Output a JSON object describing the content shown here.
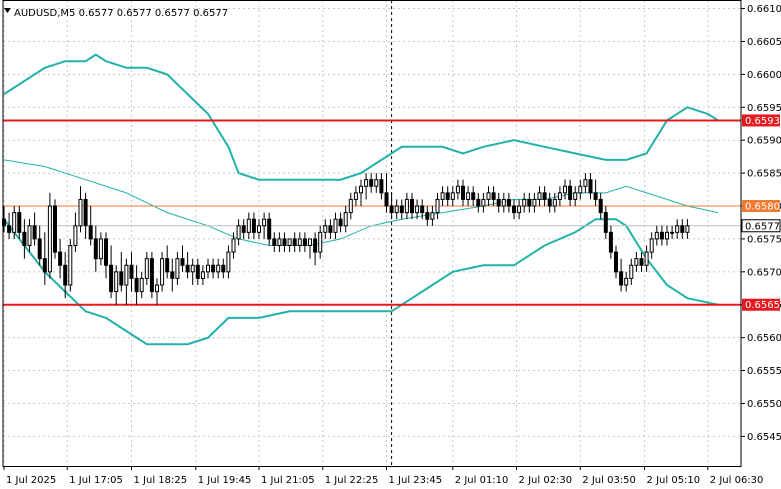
{
  "chart_data": {
    "type": "candlestick",
    "symbol_header": "AUDUSD,M5  0.6577 0.6577 0.6577 0.6577",
    "y_range": [
      0.65405,
      0.66113
    ],
    "y_ticks": [
      "0.6610",
      "0.6605",
      "0.6600",
      "0.6595",
      "0.6590",
      "0.6585",
      "0.6580",
      "0.6575",
      "0.6570",
      "0.6565",
      "0.6560",
      "0.6555",
      "0.6550",
      "0.6545"
    ],
    "x_ticks": [
      "1 Jul 2025",
      "1 Jul 17:05",
      "1 Jul 18:25",
      "1 Jul 19:45",
      "1 Jul 21:05",
      "1 Jul 22:25",
      "1 Jul 23:45",
      "2 Jul 01:10",
      "2 Jul 02:30",
      "2 Jul 03:50",
      "2 Jul 05:10",
      "2 Jul 06:30"
    ],
    "horizontal_lines": [
      {
        "price": 0.6593,
        "label": "0.6593",
        "color": "#e8191e",
        "width": 2
      },
      {
        "price": 0.658,
        "label": "0.6580",
        "color": "#f07a32",
        "width": 1
      },
      {
        "price": 0.6565,
        "label": "0.6565",
        "color": "#e8191e",
        "width": 2
      }
    ],
    "current_price": {
      "price": 0.6577,
      "label": "0.6577"
    },
    "session_divider_index": 76,
    "indicators": {
      "upper_band": [
        [
          0,
          0.6597
        ],
        [
          4,
          0.6599
        ],
        [
          8,
          0.6601
        ],
        [
          12,
          0.6602
        ],
        [
          16,
          0.6602
        ],
        [
          18,
          0.6603
        ],
        [
          20,
          0.6602
        ],
        [
          24,
          0.6601
        ],
        [
          28,
          0.6601
        ],
        [
          32,
          0.66
        ],
        [
          36,
          0.6597
        ],
        [
          40,
          0.6594
        ],
        [
          44,
          0.6589
        ],
        [
          46,
          0.6585
        ],
        [
          50,
          0.6584
        ],
        [
          56,
          0.6584
        ],
        [
          62,
          0.6584
        ],
        [
          66,
          0.6584
        ],
        [
          70,
          0.6585
        ],
        [
          74,
          0.6587
        ],
        [
          78,
          0.6589
        ],
        [
          86,
          0.6589
        ],
        [
          90,
          0.6588
        ],
        [
          94,
          0.6589
        ],
        [
          100,
          0.659
        ],
        [
          106,
          0.6589
        ],
        [
          112,
          0.6588
        ],
        [
          118,
          0.6587
        ],
        [
          122,
          0.6587
        ],
        [
          126,
          0.6588
        ],
        [
          130,
          0.6593
        ],
        [
          134,
          0.6595
        ],
        [
          138,
          0.6594
        ],
        [
          140,
          0.6593
        ]
      ],
      "lower_band": [
        [
          0,
          0.6578
        ],
        [
          4,
          0.6574
        ],
        [
          8,
          0.657
        ],
        [
          12,
          0.6567
        ],
        [
          16,
          0.6564
        ],
        [
          20,
          0.6563
        ],
        [
          24,
          0.6561
        ],
        [
          28,
          0.6559
        ],
        [
          32,
          0.6559
        ],
        [
          36,
          0.6559
        ],
        [
          40,
          0.656
        ],
        [
          44,
          0.6563
        ],
        [
          50,
          0.6563
        ],
        [
          56,
          0.6564
        ],
        [
          62,
          0.6564
        ],
        [
          66,
          0.6564
        ],
        [
          70,
          0.6564
        ],
        [
          76,
          0.6564
        ],
        [
          80,
          0.6566
        ],
        [
          84,
          0.6568
        ],
        [
          88,
          0.657
        ],
        [
          94,
          0.6571
        ],
        [
          100,
          0.6571
        ],
        [
          106,
          0.6574
        ],
        [
          112,
          0.6576
        ],
        [
          116,
          0.6578
        ],
        [
          120,
          0.6578
        ],
        [
          122,
          0.6577
        ],
        [
          126,
          0.6572
        ],
        [
          130,
          0.6568
        ],
        [
          134,
          0.6566
        ],
        [
          140,
          0.6565
        ]
      ],
      "moving_average": [
        [
          0,
          0.6587
        ],
        [
          8,
          0.6586
        ],
        [
          16,
          0.6584
        ],
        [
          24,
          0.6582
        ],
        [
          32,
          0.6579
        ],
        [
          40,
          0.6577
        ],
        [
          46,
          0.6575
        ],
        [
          52,
          0.6574
        ],
        [
          60,
          0.6574
        ],
        [
          66,
          0.6575
        ],
        [
          72,
          0.6577
        ],
        [
          78,
          0.6578
        ],
        [
          86,
          0.6579
        ],
        [
          94,
          0.658
        ],
        [
          100,
          0.6581
        ],
        [
          106,
          0.6581
        ],
        [
          112,
          0.6582
        ],
        [
          118,
          0.6582
        ],
        [
          122,
          0.6583
        ],
        [
          126,
          0.6582
        ],
        [
          130,
          0.6581
        ],
        [
          134,
          0.658
        ],
        [
          140,
          0.6579
        ]
      ]
    },
    "candles": [
      [
        0.6578,
        0.658,
        0.6576,
        0.6577
      ],
      [
        0.6577,
        0.6579,
        0.6575,
        0.6576
      ],
      [
        0.6576,
        0.658,
        0.6575,
        0.6579
      ],
      [
        0.6579,
        0.658,
        0.6575,
        0.6576
      ],
      [
        0.6576,
        0.6578,
        0.6572,
        0.6574
      ],
      [
        0.6574,
        0.6578,
        0.6573,
        0.6577
      ],
      [
        0.6577,
        0.6579,
        0.6574,
        0.6575
      ],
      [
        0.6575,
        0.6577,
        0.6571,
        0.6572
      ],
      [
        0.6572,
        0.6576,
        0.6568,
        0.657
      ],
      [
        0.657,
        0.6582,
        0.6569,
        0.658
      ],
      [
        0.658,
        0.6581,
        0.6572,
        0.6573
      ],
      [
        0.6573,
        0.6575,
        0.6569,
        0.6571
      ],
      [
        0.6571,
        0.6573,
        0.6566,
        0.6568
      ],
      [
        0.6568,
        0.6575,
        0.6567,
        0.6574
      ],
      [
        0.6574,
        0.6579,
        0.6573,
        0.6577
      ],
      [
        0.6577,
        0.6583,
        0.6576,
        0.6581
      ],
      [
        0.6581,
        0.6582,
        0.6575,
        0.6577
      ],
      [
        0.6577,
        0.658,
        0.6574,
        0.6575
      ],
      [
        0.6575,
        0.6577,
        0.657,
        0.6572
      ],
      [
        0.6572,
        0.6576,
        0.6571,
        0.6575
      ],
      [
        0.6575,
        0.6576,
        0.6569,
        0.6571
      ],
      [
        0.6571,
        0.6574,
        0.6566,
        0.6567
      ],
      [
        0.6567,
        0.6571,
        0.6565,
        0.657
      ],
      [
        0.657,
        0.6573,
        0.6567,
        0.6568
      ],
      [
        0.6568,
        0.6572,
        0.6565,
        0.6571
      ],
      [
        0.6571,
        0.6573,
        0.6567,
        0.6569
      ],
      [
        0.6569,
        0.6571,
        0.6565,
        0.6567
      ],
      [
        0.6567,
        0.657,
        0.6566,
        0.6569
      ],
      [
        0.6569,
        0.6573,
        0.6568,
        0.6572
      ],
      [
        0.6572,
        0.6573,
        0.6566,
        0.6567
      ],
      [
        0.6567,
        0.6569,
        0.6565,
        0.6568
      ],
      [
        0.6568,
        0.6573,
        0.6567,
        0.6572
      ],
      [
        0.6572,
        0.6574,
        0.6569,
        0.657
      ],
      [
        0.657,
        0.6572,
        0.6567,
        0.6569
      ],
      [
        0.6569,
        0.6573,
        0.6568,
        0.6572
      ],
      [
        0.6572,
        0.6574,
        0.657,
        0.6571
      ],
      [
        0.6571,
        0.6573,
        0.6569,
        0.657
      ],
      [
        0.657,
        0.6572,
        0.6568,
        0.6571
      ],
      [
        0.6571,
        0.6572,
        0.6568,
        0.6569
      ],
      [
        0.6569,
        0.6571,
        0.6568,
        0.657
      ],
      [
        0.657,
        0.6572,
        0.6569,
        0.6571
      ],
      [
        0.6571,
        0.6572,
        0.6569,
        0.657
      ],
      [
        0.657,
        0.6572,
        0.6569,
        0.6571
      ],
      [
        0.6571,
        0.6572,
        0.6569,
        0.657
      ],
      [
        0.657,
        0.6574,
        0.6569,
        0.6573
      ],
      [
        0.6573,
        0.6576,
        0.6572,
        0.6575
      ],
      [
        0.6575,
        0.6578,
        0.6574,
        0.6577
      ],
      [
        0.6577,
        0.6578,
        0.6575,
        0.6576
      ],
      [
        0.6576,
        0.6579,
        0.6575,
        0.6578
      ],
      [
        0.6578,
        0.6579,
        0.6575,
        0.6576
      ],
      [
        0.6576,
        0.6578,
        0.6575,
        0.6577
      ],
      [
        0.6577,
        0.6579,
        0.6575,
        0.6578
      ],
      [
        0.6578,
        0.6579,
        0.6574,
        0.6575
      ],
      [
        0.6575,
        0.6576,
        0.6573,
        0.6574
      ],
      [
        0.6574,
        0.6576,
        0.6573,
        0.6575
      ],
      [
        0.6575,
        0.6576,
        0.6573,
        0.6574
      ],
      [
        0.6574,
        0.6575,
        0.6573,
        0.6575
      ],
      [
        0.6575,
        0.6576,
        0.6573,
        0.6574
      ],
      [
        0.6574,
        0.6576,
        0.6573,
        0.6575
      ],
      [
        0.6575,
        0.6576,
        0.6573,
        0.6574
      ],
      [
        0.6574,
        0.6575,
        0.6572,
        0.6575
      ],
      [
        0.6575,
        0.6576,
        0.6571,
        0.6573
      ],
      [
        0.6573,
        0.6577,
        0.6572,
        0.6576
      ],
      [
        0.6576,
        0.6578,
        0.6575,
        0.6577
      ],
      [
        0.6577,
        0.6578,
        0.6575,
        0.6576
      ],
      [
        0.6576,
        0.6579,
        0.6575,
        0.6578
      ],
      [
        0.6578,
        0.6579,
        0.6576,
        0.6577
      ],
      [
        0.6577,
        0.658,
        0.6576,
        0.6579
      ],
      [
        0.6579,
        0.6582,
        0.6578,
        0.6581
      ],
      [
        0.6581,
        0.6583,
        0.658,
        0.6582
      ],
      [
        0.6582,
        0.6584,
        0.658,
        0.6583
      ],
      [
        0.6583,
        0.6585,
        0.6581,
        0.6584
      ],
      [
        0.6584,
        0.6585,
        0.6582,
        0.6583
      ],
      [
        0.6583,
        0.6585,
        0.6582,
        0.6584
      ],
      [
        0.6584,
        0.6585,
        0.6581,
        0.6582
      ],
      [
        0.6582,
        0.6585,
        0.6579,
        0.658
      ],
      [
        0.658,
        0.6582,
        0.6578,
        0.6579
      ],
      [
        0.6579,
        0.6581,
        0.6578,
        0.658
      ],
      [
        0.658,
        0.6581,
        0.6578,
        0.6579
      ],
      [
        0.6579,
        0.6582,
        0.6578,
        0.6581
      ],
      [
        0.6581,
        0.6582,
        0.6578,
        0.6579
      ],
      [
        0.6579,
        0.6581,
        0.6578,
        0.658
      ],
      [
        0.658,
        0.6581,
        0.6578,
        0.6579
      ],
      [
        0.6579,
        0.658,
        0.6577,
        0.6578
      ],
      [
        0.6578,
        0.658,
        0.6577,
        0.6579
      ],
      [
        0.6579,
        0.6582,
        0.6578,
        0.6581
      ],
      [
        0.6581,
        0.6583,
        0.658,
        0.6582
      ],
      [
        0.6582,
        0.6583,
        0.658,
        0.6581
      ],
      [
        0.6581,
        0.6583,
        0.658,
        0.6582
      ],
      [
        0.6582,
        0.6584,
        0.6581,
        0.6583
      ],
      [
        0.6583,
        0.6584,
        0.658,
        0.6581
      ],
      [
        0.6581,
        0.6583,
        0.658,
        0.6582
      ],
      [
        0.6582,
        0.6583,
        0.658,
        0.6581
      ],
      [
        0.6581,
        0.6582,
        0.6579,
        0.658
      ],
      [
        0.658,
        0.6582,
        0.6579,
        0.6581
      ],
      [
        0.6581,
        0.6583,
        0.658,
        0.6582
      ],
      [
        0.6582,
        0.6583,
        0.658,
        0.6581
      ],
      [
        0.6581,
        0.6582,
        0.6579,
        0.658
      ],
      [
        0.658,
        0.6582,
        0.6579,
        0.6581
      ],
      [
        0.6581,
        0.6582,
        0.6579,
        0.658
      ],
      [
        0.658,
        0.6581,
        0.6578,
        0.6579
      ],
      [
        0.6579,
        0.6581,
        0.6578,
        0.658
      ],
      [
        0.658,
        0.6582,
        0.6579,
        0.6581
      ],
      [
        0.6581,
        0.6582,
        0.6579,
        0.658
      ],
      [
        0.658,
        0.6582,
        0.6579,
        0.6581
      ],
      [
        0.6581,
        0.6583,
        0.658,
        0.6582
      ],
      [
        0.6582,
        0.6583,
        0.658,
        0.6581
      ],
      [
        0.6581,
        0.6582,
        0.6579,
        0.658
      ],
      [
        0.658,
        0.6582,
        0.6579,
        0.6581
      ],
      [
        0.6581,
        0.6583,
        0.658,
        0.6582
      ],
      [
        0.6582,
        0.6584,
        0.6581,
        0.6583
      ],
      [
        0.6583,
        0.6584,
        0.658,
        0.6581
      ],
      [
        0.6581,
        0.6583,
        0.658,
        0.6582
      ],
      [
        0.6582,
        0.6584,
        0.6581,
        0.6583
      ],
      [
        0.6583,
        0.6585,
        0.6582,
        0.6584
      ],
      [
        0.6584,
        0.6585,
        0.6581,
        0.6582
      ],
      [
        0.6582,
        0.6584,
        0.658,
        0.6581
      ],
      [
        0.6581,
        0.6582,
        0.6578,
        0.6579
      ],
      [
        0.6579,
        0.658,
        0.6575,
        0.6576
      ],
      [
        0.6576,
        0.6577,
        0.6572,
        0.6573
      ],
      [
        0.6573,
        0.6574,
        0.6569,
        0.657
      ],
      [
        0.657,
        0.6572,
        0.6567,
        0.6568
      ],
      [
        0.6568,
        0.657,
        0.6567,
        0.6569
      ],
      [
        0.6569,
        0.6572,
        0.6568,
        0.6571
      ],
      [
        0.6571,
        0.6573,
        0.657,
        0.6572
      ],
      [
        0.6572,
        0.6573,
        0.657,
        0.6571
      ],
      [
        0.6571,
        0.6574,
        0.657,
        0.6573
      ],
      [
        0.6573,
        0.6576,
        0.6572,
        0.6575
      ],
      [
        0.6575,
        0.6577,
        0.6574,
        0.6576
      ],
      [
        0.6576,
        0.6577,
        0.6574,
        0.6575
      ],
      [
        0.6575,
        0.6577,
        0.6574,
        0.6576
      ],
      [
        0.6576,
        0.6577,
        0.6575,
        0.6576
      ],
      [
        0.6576,
        0.6578,
        0.6575,
        0.6577
      ],
      [
        0.6577,
        0.6578,
        0.6575,
        0.6576
      ],
      [
        0.6576,
        0.6578,
        0.6575,
        0.6577
      ]
    ]
  }
}
